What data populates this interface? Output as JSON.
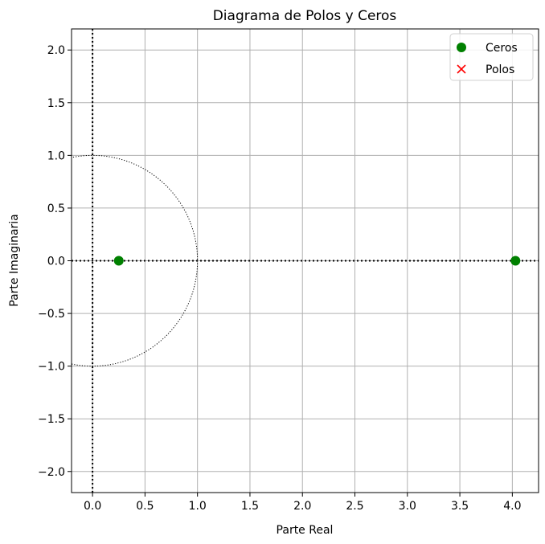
{
  "chart_data": {
    "type": "scatter",
    "title": "Diagrama de Polos y Ceros",
    "xlabel": "Parte Real",
    "ylabel": "Parte Imaginaria",
    "xlim": [
      -0.2,
      4.25
    ],
    "ylim": [
      -2.2,
      2.2
    ],
    "xticks": [
      0.0,
      0.5,
      1.0,
      1.5,
      2.0,
      2.5,
      3.0,
      3.5,
      4.0
    ],
    "xtick_labels": [
      "0.0",
      "0.5",
      "1.0",
      "1.5",
      "2.0",
      "2.5",
      "3.0",
      "3.5",
      "4.0"
    ],
    "yticks": [
      2.0,
      1.5,
      1.0,
      0.5,
      0.0,
      -0.5,
      -1.0,
      -1.5,
      -2.0
    ],
    "ytick_labels": [
      "2.0",
      "1.5",
      "1.0",
      "0.5",
      "0.0",
      "−0.5",
      "−1.0",
      "−1.5",
      "−2.0"
    ],
    "grid": true,
    "unit_circle": {
      "radius": 1.0,
      "style": "dotted"
    },
    "reference_lines": {
      "x": 0,
      "y": 0,
      "style": "dotted"
    },
    "legend_position": "top-right",
    "series": [
      {
        "name": "Ceros",
        "marker": "circle",
        "color": "#008000",
        "points": [
          [
            0.25,
            0.0
          ],
          [
            4.03,
            0.0
          ]
        ]
      },
      {
        "name": "Polos",
        "marker": "x",
        "color": "#ff0000",
        "points": []
      }
    ]
  }
}
